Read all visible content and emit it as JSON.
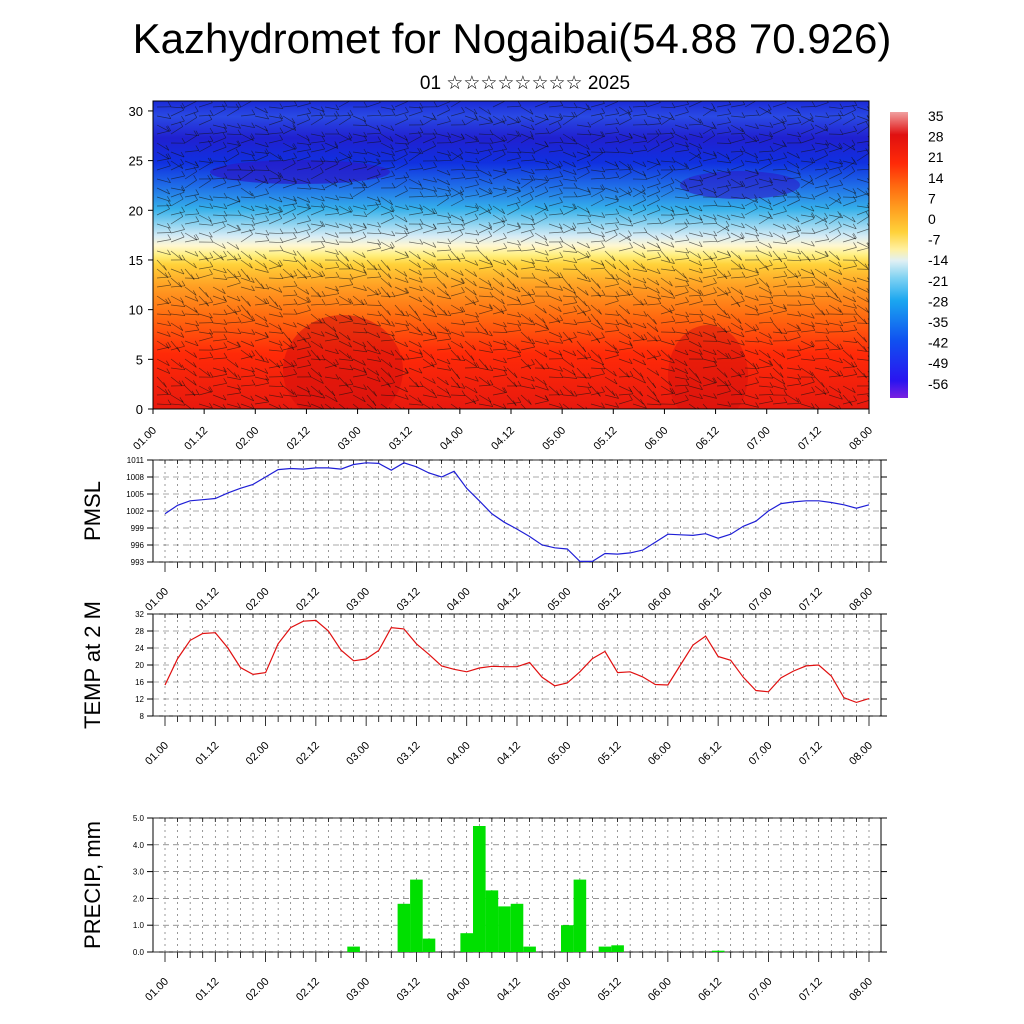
{
  "header": {
    "title": "Kazhydromet for Nogaibai(54.88 70.926)",
    "subtitle": "01 ☆☆☆☆☆☆☆☆ 2025"
  },
  "colors": {
    "pmsl_line": "#1f1fd6",
    "temp_line": "#e01010",
    "precip_bar": "#00e000",
    "grid": "#555555"
  },
  "x_tick_labels": [
    "01.00",
    "01.12",
    "02.00",
    "02.12",
    "03.00",
    "03.12",
    "04.00",
    "04.12",
    "05.00",
    "05.12",
    "06.00",
    "06.12",
    "07.00",
    "07.12",
    "08.00"
  ],
  "chart_data": [
    {
      "type": "heatmap",
      "description_of_axes": "",
      "y_ticks": [
        0,
        5,
        10,
        15,
        20,
        25,
        30
      ],
      "ylim": [
        0,
        31
      ],
      "x_ticks": [
        "01.00",
        "01.12",
        "02.00",
        "02.12",
        "03.00",
        "03.12",
        "04.00",
        "04.12",
        "05.00",
        "05.12",
        "06.00",
        "06.12",
        "07.00",
        "07.12",
        "08.00"
      ],
      "colorbar_labels": [
        "35",
        "28",
        "21",
        "14",
        "7",
        "0",
        "-7",
        "-14",
        "-21",
        "-28",
        "-35",
        "-42",
        "-49",
        "-56"
      ],
      "colorbar_range": [
        -60,
        38
      ],
      "has_wind_barbs": true
    },
    {
      "type": "line",
      "ylabel": "PMSL",
      "ylim": [
        993,
        1011
      ],
      "y_ticks": [
        993,
        996,
        999,
        1002,
        1005,
        1008,
        1011
      ],
      "x_ticks": [
        "01.00",
        "01.12",
        "02.00",
        "02.12",
        "03.00",
        "03.12",
        "04.00",
        "04.12",
        "05.00",
        "05.12",
        "06.00",
        "06.12",
        "07.00",
        "07.12",
        "08.00"
      ],
      "x": [
        0,
        3,
        6,
        9,
        12,
        15,
        18,
        21,
        24,
        27,
        30,
        33,
        36,
        39,
        42,
        45,
        48,
        51,
        54,
        57,
        60,
        63,
        66,
        69,
        72,
        75,
        78,
        81,
        84,
        87,
        90,
        93,
        96,
        99,
        102,
        105,
        108,
        111,
        114,
        117,
        120,
        123,
        126,
        129,
        132,
        135,
        138,
        141,
        144,
        147,
        150,
        153,
        156,
        159,
        162,
        165,
        168
      ],
      "values": [
        1001.5,
        1003,
        1003.8,
        1004,
        1004.2,
        1005.2,
        1006,
        1006.7,
        1008,
        1009.3,
        1009.5,
        1009.4,
        1009.6,
        1009.6,
        1009.4,
        1010.2,
        1010.5,
        1010.4,
        1009.2,
        1010.5,
        1009.8,
        1008.7,
        1008,
        1009,
        1006,
        1003.8,
        1001.5,
        1000,
        998.8,
        997.5,
        996,
        995.5,
        995.3,
        993.1,
        993.1,
        994.5,
        994.4,
        994.6,
        995.1,
        996.5,
        997.9,
        997.8,
        997.7,
        998,
        997.2,
        997.9,
        999.3,
        1000.2,
        1002,
        1003.3,
        1003.6,
        1003.8,
        1003.8,
        1003.5,
        1003.1,
        1002.5,
        1003.1
      ]
    },
    {
      "type": "line",
      "ylabel": "TEMP at 2 M",
      "ylim": [
        8,
        32
      ],
      "y_ticks": [
        8,
        12,
        16,
        20,
        24,
        28,
        32
      ],
      "x_ticks": [
        "01.00",
        "01.12",
        "02.00",
        "02.12",
        "03.00",
        "03.12",
        "04.00",
        "04.12",
        "05.00",
        "05.12",
        "06.00",
        "06.12",
        "07.00",
        "07.12",
        "08.00"
      ],
      "x": [
        0,
        3,
        6,
        9,
        12,
        15,
        18,
        21,
        24,
        27,
        30,
        33,
        36,
        39,
        42,
        45,
        48,
        51,
        54,
        57,
        60,
        63,
        66,
        69,
        72,
        75,
        78,
        81,
        84,
        87,
        90,
        93,
        96,
        99,
        102,
        105,
        108,
        111,
        114,
        117,
        120,
        123,
        126,
        129,
        132,
        135,
        138,
        141,
        144,
        147,
        150,
        153,
        156,
        159,
        162,
        165,
        168
      ],
      "values": [
        15.3,
        21.5,
        25.8,
        27.4,
        27.6,
        24,
        19.4,
        17.8,
        18.2,
        25,
        28.8,
        30.3,
        30.5,
        28,
        23.5,
        21,
        21.4,
        23.4,
        28.8,
        28.5,
        25,
        22.5,
        19.8,
        19,
        18.4,
        19.3,
        19.7,
        19.6,
        19.6,
        20.6,
        17.1,
        15.1,
        15.8,
        18.4,
        21.5,
        23.2,
        18.2,
        18.4,
        17.2,
        15.4,
        15.3,
        20,
        24.7,
        26.8,
        22,
        21.1,
        17.1,
        14,
        13.7,
        17,
        18.6,
        19.8,
        20,
        17.4,
        12.3,
        11.2,
        12.1
      ]
    },
    {
      "type": "bar",
      "ylabel": "PRECIP, mm",
      "ylim": [
        0,
        5
      ],
      "y_ticks": [
        "0.0",
        "1.0",
        "2.0",
        "3.0",
        "4.0",
        "5.0"
      ],
      "x_ticks": [
        "01.00",
        "01.12",
        "02.00",
        "02.12",
        "03.00",
        "03.12",
        "04.00",
        "04.12",
        "05.00",
        "05.12",
        "06.00",
        "06.12",
        "07.00",
        "07.12",
        "08.00"
      ],
      "x": [
        45,
        57,
        60,
        63,
        72,
        75,
        78,
        81,
        84,
        87,
        96,
        99,
        105,
        108,
        132
      ],
      "values": [
        0.2,
        1.8,
        2.7,
        0.5,
        0.7,
        4.7,
        2.3,
        1.7,
        1.8,
        0.2,
        1.0,
        2.7,
        0.2,
        0.25,
        0.05
      ]
    }
  ]
}
